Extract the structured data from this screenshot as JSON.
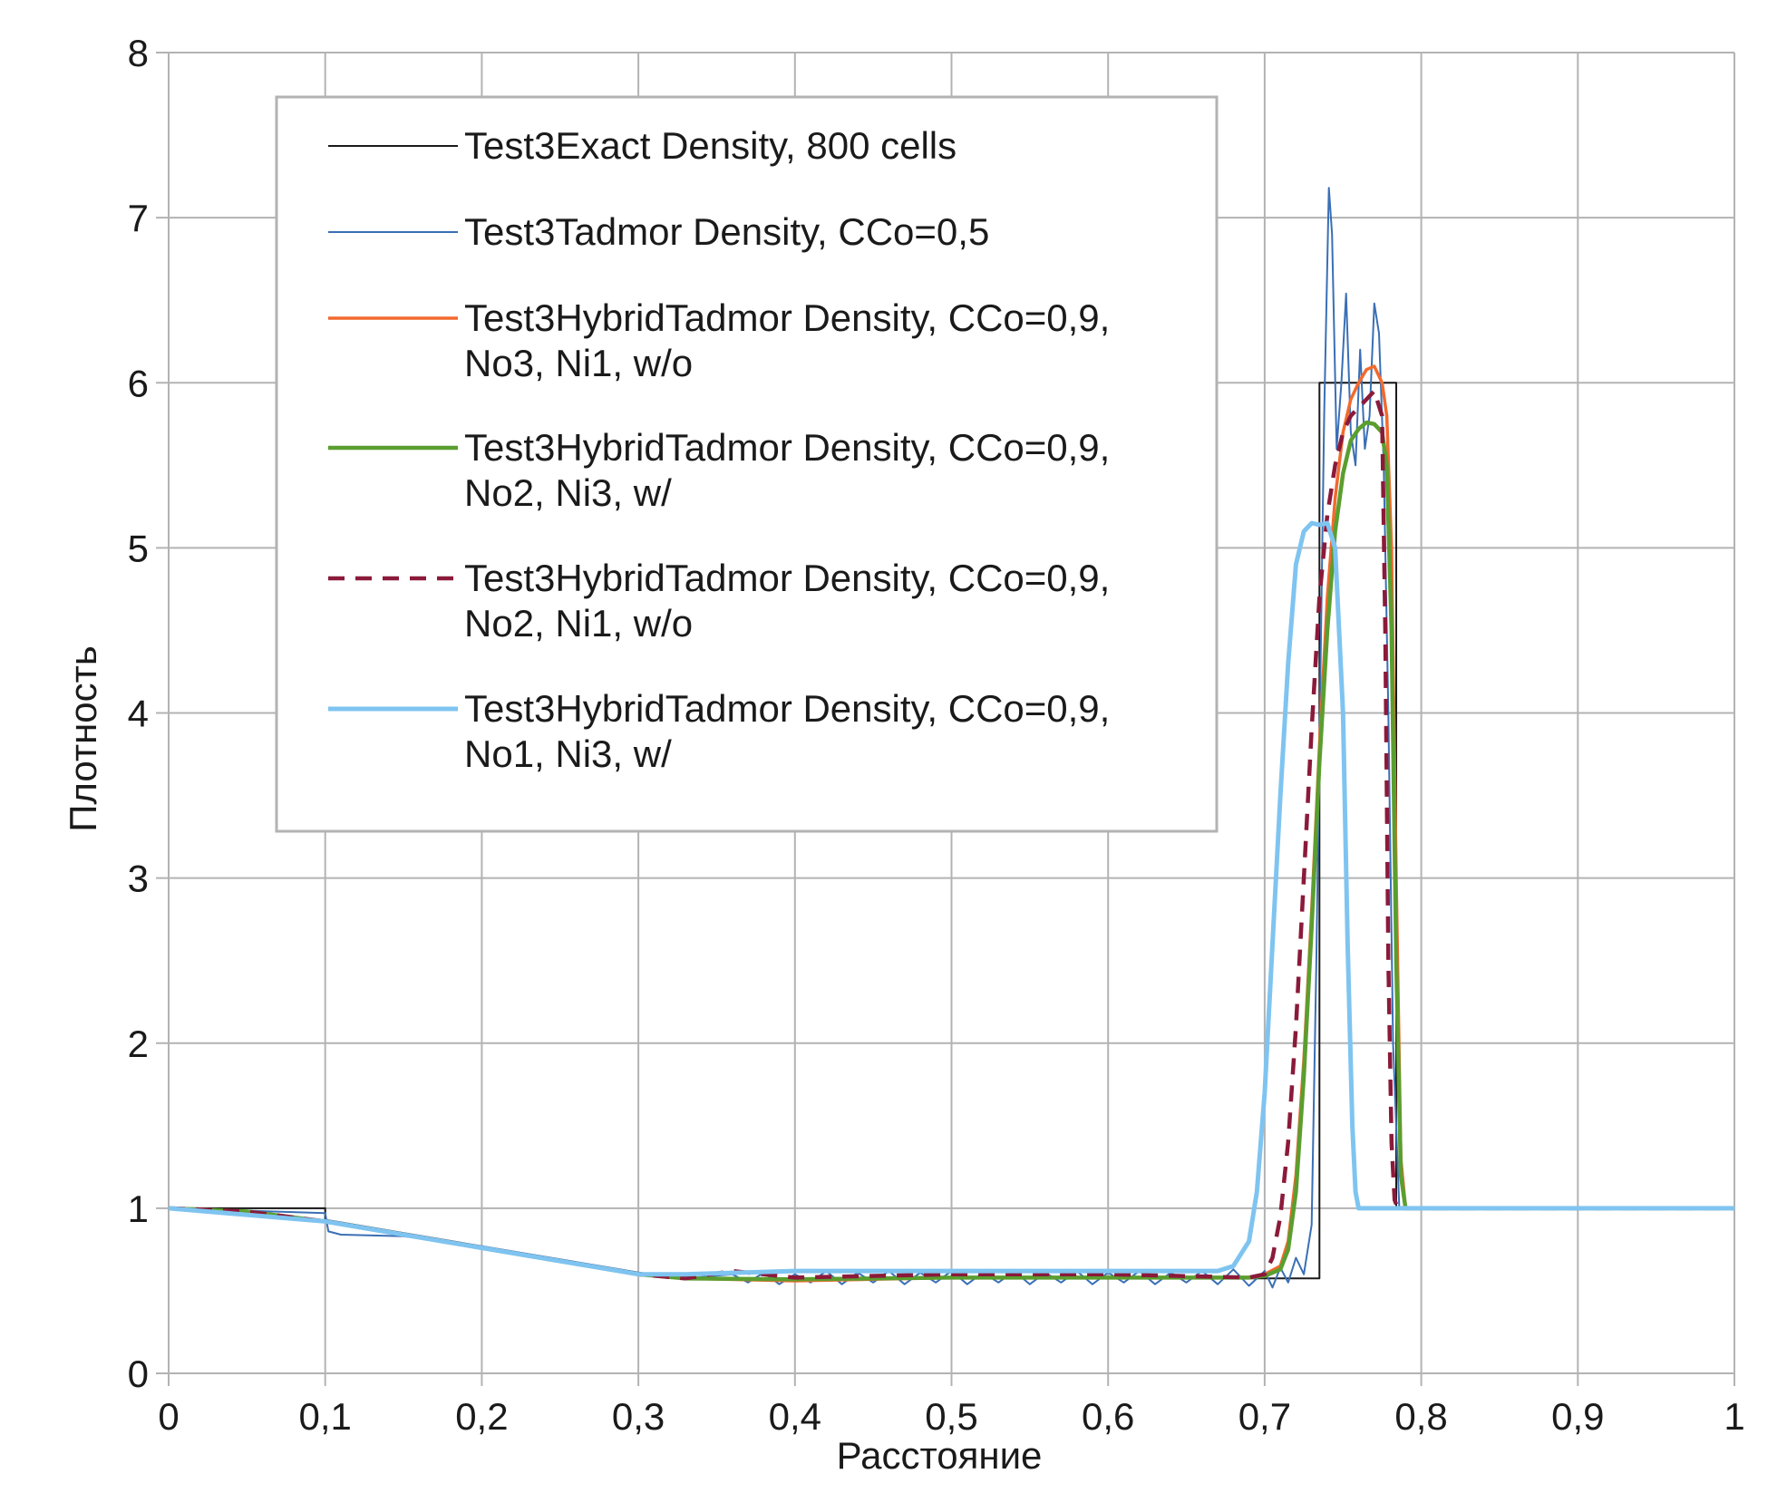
{
  "chart_data": {
    "type": "line",
    "xlabel": "Расстояние",
    "ylabel": "Плотность",
    "xlim": [
      0,
      1
    ],
    "ylim": [
      0,
      8
    ],
    "xticks": [
      0,
      0.1,
      0.2,
      0.3,
      0.4,
      0.5,
      0.6,
      0.7,
      0.8,
      0.9,
      1
    ],
    "xtick_labels": [
      "0",
      "0,1",
      "0,2",
      "0,3",
      "0,4",
      "0,5",
      "0,6",
      "0,7",
      "0,8",
      "0,9",
      "1"
    ],
    "yticks": [
      0,
      1,
      2,
      3,
      4,
      5,
      6,
      7,
      8
    ],
    "ytick_labels": [
      "0",
      "1",
      "2",
      "3",
      "4",
      "5",
      "6",
      "7",
      "8"
    ],
    "grid": true,
    "legend_position": "top-left",
    "series": [
      {
        "name": "Test3Exact Density, 800 cells",
        "legend_lines": [
          "Test3Exact Density, 800 cells"
        ],
        "color": "#1a1a1a",
        "style": "solid",
        "x": [
          0,
          0.1,
          0.1,
          0.15,
          0.2,
          0.25,
          0.3,
          0.33,
          0.4,
          0.5,
          0.6,
          0.7,
          0.735,
          0.735,
          0.784,
          0.784,
          0.85,
          1
        ],
        "y": [
          1,
          1,
          0.93,
          0.85,
          0.77,
          0.69,
          0.61,
          0.575,
          0.575,
          0.575,
          0.575,
          0.575,
          0.575,
          6,
          6,
          1,
          1,
          1
        ]
      },
      {
        "name": "Test3Tadmor Density, CCo=0,5",
        "legend_lines": [
          "Test3Tadmor Density, CCo=0,5"
        ],
        "color": "#3a6fb5",
        "style": "solid",
        "x": [
          0,
          0.1,
          0.102,
          0.11,
          0.15,
          0.2,
          0.25,
          0.3,
          0.33,
          0.36,
          0.37,
          0.38,
          0.39,
          0.4,
          0.41,
          0.42,
          0.43,
          0.44,
          0.45,
          0.46,
          0.47,
          0.48,
          0.49,
          0.5,
          0.51,
          0.52,
          0.53,
          0.54,
          0.55,
          0.56,
          0.57,
          0.58,
          0.59,
          0.6,
          0.61,
          0.62,
          0.63,
          0.64,
          0.65,
          0.66,
          0.67,
          0.68,
          0.69,
          0.7,
          0.705,
          0.71,
          0.715,
          0.72,
          0.725,
          0.73,
          0.733,
          0.736,
          0.738,
          0.741,
          0.743,
          0.746,
          0.749,
          0.752,
          0.755,
          0.758,
          0.761,
          0.764,
          0.767,
          0.77,
          0.773,
          0.776,
          0.779,
          0.782,
          0.786,
          0.79,
          0.85,
          1
        ],
        "y": [
          1,
          0.97,
          0.86,
          0.84,
          0.83,
          0.77,
          0.69,
          0.61,
          0.575,
          0.6,
          0.55,
          0.61,
          0.54,
          0.6,
          0.55,
          0.62,
          0.54,
          0.61,
          0.55,
          0.62,
          0.54,
          0.61,
          0.55,
          0.62,
          0.54,
          0.61,
          0.55,
          0.62,
          0.54,
          0.61,
          0.55,
          0.62,
          0.54,
          0.61,
          0.55,
          0.62,
          0.54,
          0.61,
          0.55,
          0.62,
          0.54,
          0.63,
          0.53,
          0.62,
          0.52,
          0.64,
          0.55,
          0.7,
          0.6,
          0.9,
          2.5,
          4.5,
          5.8,
          7.18,
          6.9,
          5.6,
          6.0,
          6.54,
          5.7,
          5.5,
          6.2,
          5.6,
          5.8,
          6.48,
          6.3,
          5.5,
          4.0,
          2.0,
          1.0,
          1,
          1,
          1
        ]
      },
      {
        "name": "Test3HybridTadmor Density, CCo=0,9, No3, Ni1, w/o",
        "legend_lines": [
          "Test3HybridTadmor Density, CCo=0,9,",
          "No3, Ni1, w/o"
        ],
        "color": "#f26a2e",
        "style": "solid",
        "x": [
          0,
          0.05,
          0.1,
          0.15,
          0.2,
          0.25,
          0.3,
          0.33,
          0.4,
          0.5,
          0.6,
          0.69,
          0.7,
          0.71,
          0.715,
          0.72,
          0.725,
          0.73,
          0.735,
          0.74,
          0.745,
          0.75,
          0.755,
          0.76,
          0.765,
          0.77,
          0.775,
          0.778,
          0.781,
          0.784,
          0.787,
          0.79,
          0.85,
          1
        ],
        "y": [
          1,
          0.98,
          0.92,
          0.84,
          0.76,
          0.68,
          0.6,
          0.575,
          0.56,
          0.58,
          0.58,
          0.58,
          0.6,
          0.65,
          0.8,
          1.2,
          1.9,
          2.8,
          3.8,
          4.7,
          5.3,
          5.7,
          5.9,
          6.0,
          6.08,
          6.1,
          6.0,
          5.8,
          5.0,
          3.0,
          1.3,
          1.0,
          1,
          1
        ]
      },
      {
        "name": "Test3HybridTadmor Density, CCo=0,9, No2, Ni3, w/",
        "legend_lines": [
          "Test3HybridTadmor Density, CCo=0,9,",
          "No2, Ni3, w/"
        ],
        "color": "#5a9e2f",
        "style": "solid",
        "x": [
          0,
          0.05,
          0.1,
          0.15,
          0.2,
          0.25,
          0.3,
          0.33,
          0.4,
          0.5,
          0.6,
          0.69,
          0.7,
          0.71,
          0.715,
          0.72,
          0.725,
          0.73,
          0.735,
          0.74,
          0.745,
          0.75,
          0.755,
          0.76,
          0.765,
          0.77,
          0.775,
          0.778,
          0.781,
          0.784,
          0.787,
          0.79,
          0.85,
          1
        ],
        "y": [
          1,
          0.98,
          0.92,
          0.84,
          0.76,
          0.68,
          0.6,
          0.575,
          0.57,
          0.58,
          0.58,
          0.58,
          0.59,
          0.63,
          0.75,
          1.1,
          1.8,
          2.7,
          3.7,
          4.5,
          5.1,
          5.45,
          5.65,
          5.72,
          5.76,
          5.75,
          5.7,
          5.5,
          4.5,
          2.5,
          1.2,
          1.0,
          1,
          1
        ]
      },
      {
        "name": "Test3HybridTadmor Density, CCo=0,9, No2, Ni1, w/o",
        "legend_lines": [
          "Test3HybridTadmor Density, CCo=0,9,",
          "No2, Ni1, w/o"
        ],
        "color": "#8b1a3a",
        "style": "dashed",
        "x": [
          0,
          0.05,
          0.1,
          0.15,
          0.2,
          0.25,
          0.3,
          0.33,
          0.36,
          0.4,
          0.5,
          0.6,
          0.69,
          0.7,
          0.705,
          0.71,
          0.715,
          0.72,
          0.725,
          0.73,
          0.735,
          0.74,
          0.745,
          0.75,
          0.755,
          0.76,
          0.765,
          0.77,
          0.775,
          0.777,
          0.779,
          0.781,
          0.783,
          0.785,
          0.85,
          1
        ],
        "y": [
          1,
          0.98,
          0.92,
          0.84,
          0.76,
          0.68,
          0.6,
          0.575,
          0.62,
          0.58,
          0.6,
          0.6,
          0.58,
          0.6,
          0.7,
          0.95,
          1.4,
          2.1,
          3.0,
          3.9,
          4.7,
          5.2,
          5.5,
          5.7,
          5.8,
          5.85,
          5.9,
          5.95,
          5.8,
          4.5,
          2.5,
          1.4,
          1.05,
          1.0,
          1,
          1
        ]
      },
      {
        "name": "Test3HybridTadmor Density, CCo=0,9, No1, Ni3, w/",
        "legend_lines": [
          "Test3HybridTadmor Density, CCo=0,9,",
          "No1, Ni3, w/"
        ],
        "color": "#7fc4f0",
        "style": "solid",
        "x": [
          0,
          0.1,
          0.2,
          0.3,
          0.33,
          0.4,
          0.5,
          0.6,
          0.67,
          0.68,
          0.69,
          0.695,
          0.7,
          0.705,
          0.71,
          0.715,
          0.72,
          0.725,
          0.73,
          0.735,
          0.74,
          0.745,
          0.75,
          0.753,
          0.756,
          0.758,
          0.76,
          0.78,
          0.85,
          1
        ],
        "y": [
          1,
          0.92,
          0.76,
          0.6,
          0.6,
          0.62,
          0.62,
          0.62,
          0.62,
          0.65,
          0.8,
          1.1,
          1.7,
          2.6,
          3.5,
          4.3,
          4.9,
          5.1,
          5.15,
          5.14,
          5.15,
          5.0,
          4.0,
          2.6,
          1.5,
          1.1,
          1.0,
          1.0,
          1,
          1
        ]
      }
    ]
  }
}
